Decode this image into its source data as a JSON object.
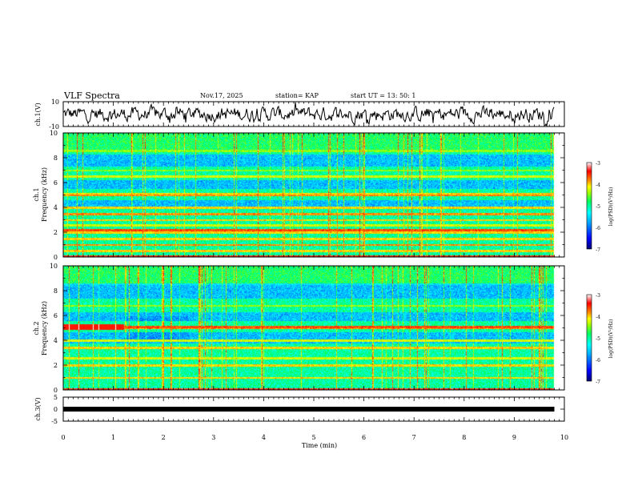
{
  "header": {
    "title": "VLF Spectra",
    "date": "Nov.17, 2025",
    "station": "station= KAP",
    "start": "start  UT  =   13: 50: 1"
  },
  "colors": {
    "colormap": [
      "#00006e",
      "#0000ff",
      "#00a0ff",
      "#00ffff",
      "#00ff60",
      "#a0ff00",
      "#ffff00",
      "#ff8000",
      "#ff0000",
      "#ffffff"
    ],
    "trace": "#000000"
  },
  "chart_data": [
    {
      "id": "ch1-waveform",
      "type": "line",
      "ylabel": "ch.1(V)",
      "ylim": [
        -10,
        10
      ],
      "yticks": [
        "10",
        "-10"
      ],
      "xlim": [
        0,
        10
      ],
      "x_end": 9.8,
      "description_series": "ambient VLF voltage, fluctuating mostly between -6 and 6 V"
    },
    {
      "id": "ch1-spectrogram",
      "type": "heatmap",
      "ylabel_top": "ch.1",
      "ylabel": "Frequency  (kHz)",
      "ylim": [
        0,
        10
      ],
      "yticks": [
        "0",
        "2",
        "4",
        "6",
        "8",
        "10"
      ],
      "xlim": [
        0,
        10
      ],
      "colorbar": {
        "label": "log(PSD)(V²/Hz)",
        "range": [
          -7,
          -3
        ],
        "ticks": [
          "-3",
          "-4",
          "-5",
          "-6",
          "-7"
        ]
      },
      "bands_khz": [
        {
          "f": 0.1,
          "level": 0.95
        },
        {
          "f": 0.5,
          "level": 0.8
        },
        {
          "f": 1.0,
          "level": 0.85
        },
        {
          "f": 1.5,
          "level": 0.8
        },
        {
          "f": 2.0,
          "level": 0.8
        },
        {
          "f": 2.2,
          "level": 0.9
        },
        {
          "f": 2.6,
          "level": 0.75
        },
        {
          "f": 3.0,
          "level": 0.8
        },
        {
          "f": 3.5,
          "level": 0.85
        },
        {
          "f": 4.0,
          "level": 0.8
        },
        {
          "f": 5.0,
          "level": 0.85
        },
        {
          "f": 5.1,
          "level": 0.8
        },
        {
          "f": 6.5,
          "level": 0.75
        },
        {
          "f": 7.0,
          "level": 0.7
        },
        {
          "f": 8.6,
          "level": 0.7
        }
      ],
      "quiet_bands_khz": [
        [
          3.9,
          4.6
        ],
        [
          5.5,
          6.2
        ],
        [
          7.3,
          8.3
        ]
      ]
    },
    {
      "id": "ch2-spectrogram",
      "type": "heatmap",
      "ylabel_top": "ch.2",
      "ylabel": "Frequency  (kHz)",
      "ylim": [
        0,
        10
      ],
      "yticks": [
        "0",
        "2",
        "4",
        "6",
        "8",
        "10"
      ],
      "xlim": [
        0,
        10
      ],
      "colorbar": {
        "label": "log(PSD)(V²/Hz)",
        "range": [
          -7,
          -3
        ],
        "ticks": [
          "-3",
          "-4",
          "-5",
          "-6",
          "-7"
        ]
      },
      "bands_khz": [
        {
          "f": 0.1,
          "level": 0.95
        },
        {
          "f": 1.0,
          "level": 0.8
        },
        {
          "f": 2.0,
          "level": 0.8
        },
        {
          "f": 2.6,
          "level": 0.75
        },
        {
          "f": 3.4,
          "level": 0.8
        },
        {
          "f": 4.0,
          "level": 0.75
        },
        {
          "f": 5.0,
          "level": 0.85
        },
        {
          "f": 5.1,
          "level": 0.9
        },
        {
          "f": 6.8,
          "level": 0.7
        }
      ],
      "quiet_bands_khz": [
        [
          3.8,
          4.7
        ],
        [
          5.6,
          6.3
        ],
        [
          7.4,
          8.6
        ]
      ]
    },
    {
      "id": "ch3-waveform",
      "type": "line",
      "ylabel": "ch.3(V)",
      "ylim": [
        -5,
        5
      ],
      "yticks": [
        "5",
        "0",
        "-5"
      ],
      "xlim": [
        0,
        10
      ],
      "constant_level": 0,
      "x_end": 9.8
    }
  ],
  "xaxis": {
    "label": "Time  (min)",
    "ticks": [
      "0",
      "1",
      "2",
      "3",
      "4",
      "5",
      "6",
      "7",
      "8",
      "9",
      "10"
    ]
  }
}
